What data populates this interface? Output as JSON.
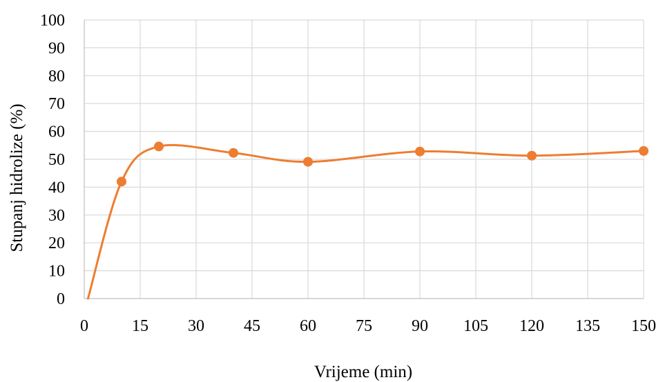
{
  "chart_data": {
    "type": "line",
    "title": "",
    "xlabel": "Vrijeme (min)",
    "ylabel": "Stupanj hidrolize (%)",
    "x_ticks": [
      "0",
      "15",
      "30",
      "45",
      "60",
      "75",
      "90",
      "105",
      "120",
      "135",
      "150"
    ],
    "y_ticks": [
      "0",
      "10",
      "20",
      "30",
      "40",
      "50",
      "60",
      "70",
      "80",
      "90",
      "100"
    ],
    "xlim": [
      0,
      150
    ],
    "ylim": [
      0,
      100
    ],
    "grid": true,
    "legend": "none",
    "smooth": true,
    "series": [
      {
        "color": "#ED7D31",
        "points": [
          {
            "x": 1,
            "y": 0,
            "marker": false
          },
          {
            "x": 10,
            "y": 42,
            "marker": true
          },
          {
            "x": 20,
            "y": 54.6,
            "marker": true
          },
          {
            "x": 40,
            "y": 52.3,
            "marker": true
          },
          {
            "x": 60,
            "y": 49.1,
            "marker": true
          },
          {
            "x": 90,
            "y": 52.8,
            "marker": true
          },
          {
            "x": 120,
            "y": 51.3,
            "marker": true
          },
          {
            "x": 150,
            "y": 53,
            "marker": true
          }
        ]
      }
    ],
    "colors": {
      "grid": "#D9D9D9",
      "axis": "#BFBFBF"
    }
  }
}
